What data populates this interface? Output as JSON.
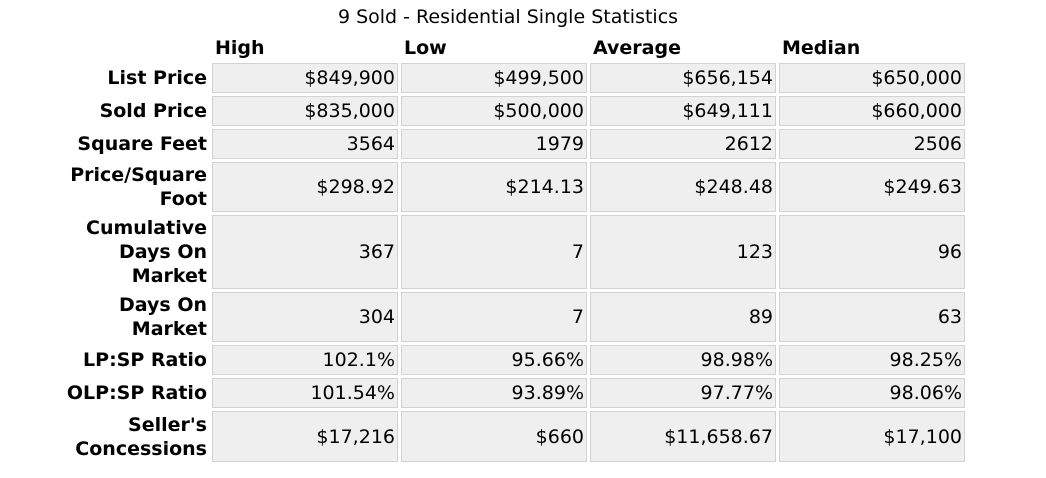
{
  "title": "9 Sold - Residential Single Statistics",
  "columns": [
    "High",
    "Low",
    "Average",
    "Median"
  ],
  "rows": [
    {
      "label": "List Price",
      "values": [
        "$849,900",
        "$499,500",
        "$656,154",
        "$650,000"
      ]
    },
    {
      "label": "Sold Price",
      "values": [
        "$835,000",
        "$500,000",
        "$649,111",
        "$660,000"
      ]
    },
    {
      "label": "Square Feet",
      "values": [
        "3564",
        "1979",
        "2612",
        "2506"
      ]
    },
    {
      "label": "Price/Square Foot",
      "values": [
        "$298.92",
        "$214.13",
        "$248.48",
        "$249.63"
      ]
    },
    {
      "label": "Cumulative Days On Market",
      "values": [
        "367",
        "7",
        "123",
        "96"
      ]
    },
    {
      "label": "Days On Market",
      "values": [
        "304",
        "7",
        "89",
        "63"
      ]
    },
    {
      "label": "LP:SP Ratio",
      "values": [
        "102.1%",
        "95.66%",
        "98.98%",
        "98.25%"
      ]
    },
    {
      "label": "OLP:SP Ratio",
      "values": [
        "101.54%",
        "93.89%",
        "97.77%",
        "98.06%"
      ]
    },
    {
      "label": "Seller's Concessions",
      "values": [
        "$17,216",
        "$660",
        "$11,658.67",
        "$17,100"
      ]
    }
  ]
}
